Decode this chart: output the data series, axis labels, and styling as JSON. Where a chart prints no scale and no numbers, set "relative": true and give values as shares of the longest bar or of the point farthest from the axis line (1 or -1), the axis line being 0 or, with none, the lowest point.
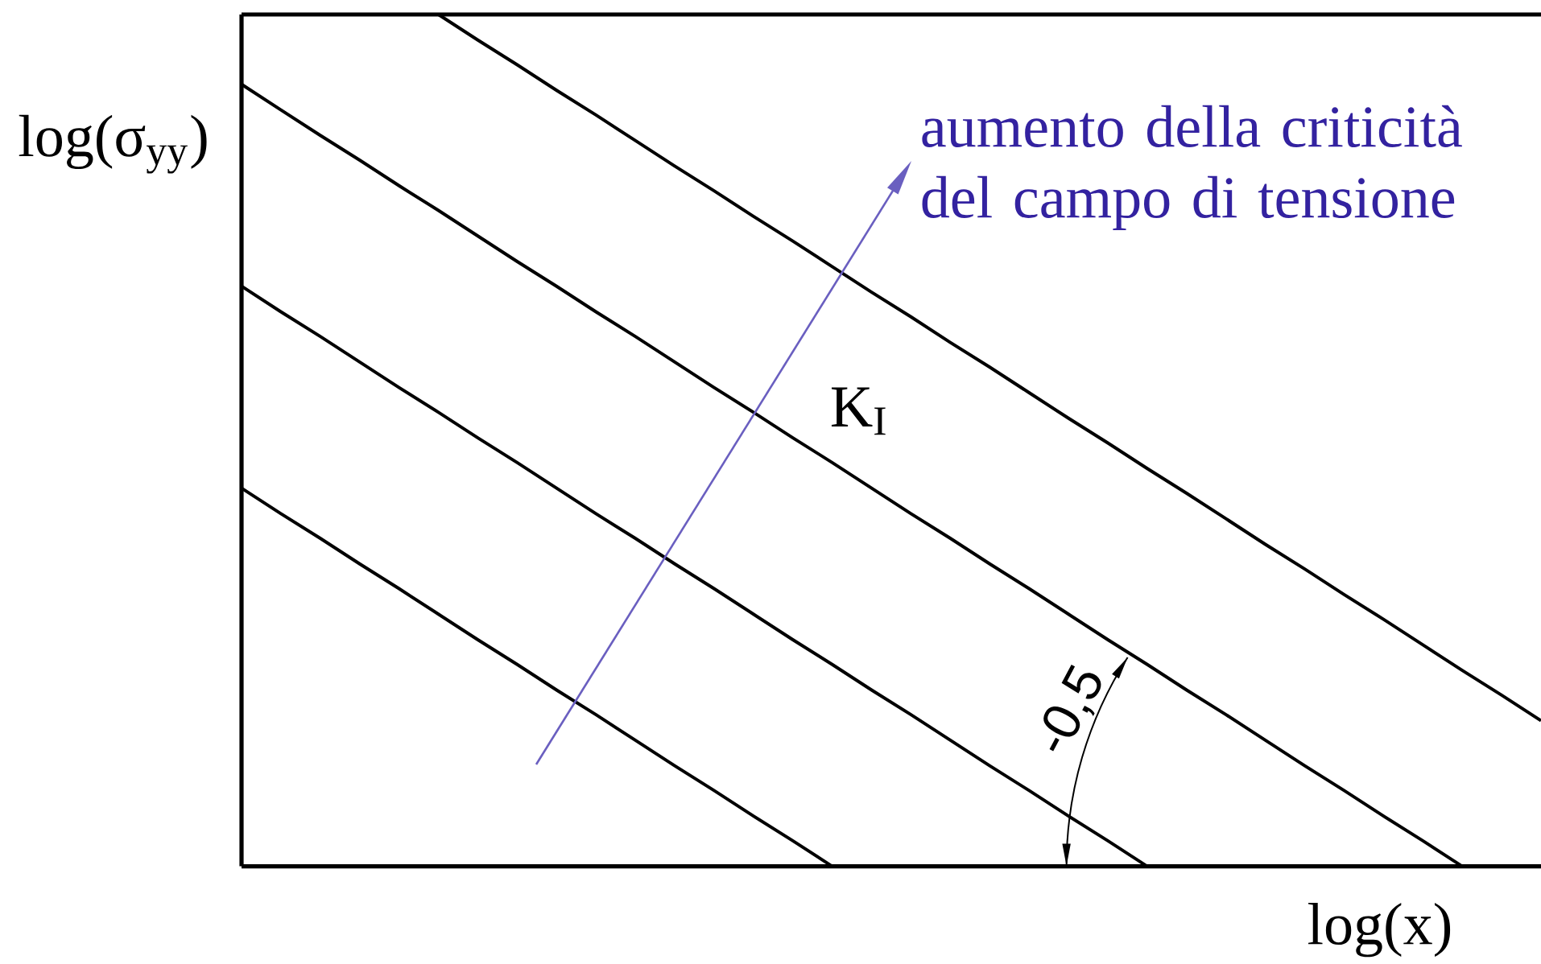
{
  "chart_data": {
    "type": "line",
    "relative": true,
    "marker": "none",
    "line_style": "solid",
    "xlabel": "log(x)",
    "ylabel": "log(σ$_{yy}$)",
    "categories": [
      null,
      null,
      null,
      null,
      null,
      null,
      null,
      null,
      null,
      null,
      null,
      null,
      null,
      null,
      null,
      null,
      null,
      null,
      null,
      null,
      null,
      null,
      null,
      null,
      null,
      null,
      null,
      null,
      null,
      null,
      null,
      null,
      null,
      null
    ],
    "series": [
      {
        "color": "#000000",
        "values": [
          0.444,
          0.414,
          0.385,
          0.355,
          0.326,
          0.296,
          0.266,
          0.237,
          0.207,
          0.178,
          0.148,
          0.118,
          0.089,
          0.059,
          0.03,
          0,
          null,
          null,
          null,
          null,
          null,
          null,
          null,
          null,
          null,
          null,
          null,
          null,
          null,
          null,
          null,
          null,
          null,
          null
        ]
      },
      {
        "color": "#000000",
        "values": [
          0.681,
          0.651,
          0.622,
          0.592,
          0.562,
          0.533,
          0.503,
          0.474,
          0.444,
          0.414,
          0.385,
          0.355,
          0.326,
          0.296,
          0.266,
          0.237,
          0.207,
          0.178,
          0.148,
          0.118,
          0.089,
          0.059,
          0.03,
          0,
          null,
          null,
          null,
          null,
          null,
          null,
          null,
          null,
          null,
          null
        ]
      },
      {
        "color": "#000000",
        "values": [
          0.918,
          0.888,
          0.858,
          0.829,
          0.799,
          0.77,
          0.74,
          0.71,
          0.681,
          0.651,
          0.622,
          0.592,
          0.562,
          0.533,
          0.503,
          0.474,
          0.444,
          0.414,
          0.385,
          0.355,
          0.326,
          0.296,
          0.266,
          0.237,
          0.207,
          0.178,
          0.148,
          0.118,
          0.089,
          0.059,
          0.03,
          0,
          null,
          null
        ]
      },
      {
        "color": "#000000",
        "values": [
          null,
          null,
          null,
          null,
          null,
          1.0,
          0.97,
          0.941,
          0.911,
          0.882,
          0.852,
          0.822,
          0.793,
          0.763,
          0.734,
          0.704,
          0.674,
          0.645,
          0.615,
          0.586,
          0.556,
          0.526,
          0.497,
          0.467,
          0.438,
          0.408,
          0.378,
          0.349,
          0.319,
          0.29,
          0.26,
          0.23,
          0.201,
          0.171
        ]
      }
    ],
    "annotations": [
      "aumento della criticità del campo di tensione",
      "K$_{I}$",
      "-0,5"
    ]
  }
}
